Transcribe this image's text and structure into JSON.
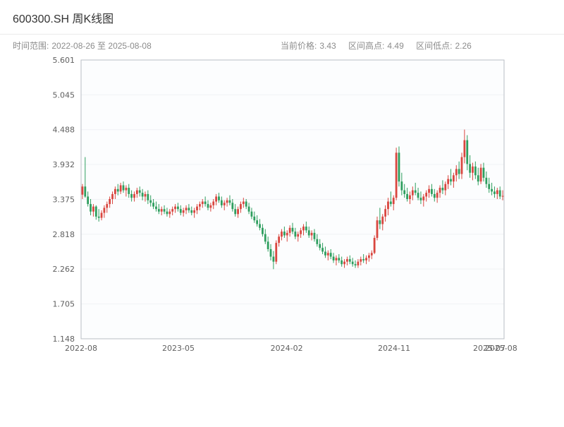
{
  "header": {
    "title": "600300.SH 周K线图",
    "time_range_label": "时间范围:",
    "time_range": "2022-08-26 至 2025-08-08",
    "stats": [
      {
        "label": "当前价格:",
        "value": "3.43"
      },
      {
        "label": "区间高点:",
        "value": "4.49"
      },
      {
        "label": "区间低点:",
        "value": "2.26"
      }
    ]
  },
  "chart_data": {
    "type": "candlestick",
    "title": "600300.SH 周K线图",
    "frequency": "weekly",
    "symbol": "600300.SH",
    "current_price": 3.43,
    "range_high": 4.49,
    "range_low": 2.26,
    "ylim": [
      1.148,
      5.601
    ],
    "y_ticks": [
      "1.148",
      "1.705",
      "2.262",
      "2.818",
      "3.375",
      "3.932",
      "4.488",
      "5.045",
      "5.601"
    ],
    "x_ticks": [
      {
        "label": "2022-08",
        "pos": 0.0
      },
      {
        "label": "2023-05",
        "pos": 0.23
      },
      {
        "label": "2024-02",
        "pos": 0.486
      },
      {
        "label": "2024-11",
        "pos": 0.74
      },
      {
        "label": "2025-07",
        "pos": 0.965
      },
      {
        "label": "2025-08",
        "pos": 0.993
      }
    ],
    "grid": true,
    "colors": {
      "up": "#d9463f",
      "down": "#2e9e5e",
      "grid": "#f0f2f5",
      "border": "#b9bec4",
      "tick_text": "#606060"
    },
    "ohlc_columns": [
      "open",
      "high",
      "low",
      "close"
    ],
    "ohlc": [
      [
        3.45,
        3.62,
        3.38,
        3.58
      ],
      [
        3.58,
        4.05,
        3.4,
        3.42
      ],
      [
        3.42,
        3.5,
        3.26,
        3.3
      ],
      [
        3.3,
        3.38,
        3.12,
        3.18
      ],
      [
        3.18,
        3.3,
        3.1,
        3.26
      ],
      [
        3.26,
        3.28,
        3.05,
        3.1
      ],
      [
        3.1,
        3.22,
        3.02,
        3.08
      ],
      [
        3.08,
        3.2,
        3.04,
        3.16
      ],
      [
        3.16,
        3.28,
        3.08,
        3.24
      ],
      [
        3.24,
        3.34,
        3.16,
        3.3
      ],
      [
        3.3,
        3.42,
        3.24,
        3.38
      ],
      [
        3.38,
        3.5,
        3.3,
        3.46
      ],
      [
        3.46,
        3.58,
        3.38,
        3.54
      ],
      [
        3.54,
        3.62,
        3.44,
        3.5
      ],
      [
        3.5,
        3.64,
        3.46,
        3.6
      ],
      [
        3.6,
        3.66,
        3.48,
        3.52
      ],
      [
        3.52,
        3.6,
        3.42,
        3.56
      ],
      [
        3.56,
        3.62,
        3.4,
        3.46
      ],
      [
        3.46,
        3.52,
        3.34,
        3.4
      ],
      [
        3.4,
        3.5,
        3.34,
        3.46
      ],
      [
        3.46,
        3.56,
        3.4,
        3.52
      ],
      [
        3.52,
        3.58,
        3.42,
        3.48
      ],
      [
        3.48,
        3.54,
        3.36,
        3.42
      ],
      [
        3.42,
        3.5,
        3.34,
        3.46
      ],
      [
        3.46,
        3.52,
        3.3,
        3.36
      ],
      [
        3.36,
        3.44,
        3.26,
        3.32
      ],
      [
        3.32,
        3.38,
        3.22,
        3.26
      ],
      [
        3.26,
        3.34,
        3.18,
        3.22
      ],
      [
        3.22,
        3.3,
        3.14,
        3.18
      ],
      [
        3.18,
        3.26,
        3.12,
        3.22
      ],
      [
        3.22,
        3.28,
        3.14,
        3.18
      ],
      [
        3.18,
        3.24,
        3.1,
        3.14
      ],
      [
        3.14,
        3.22,
        3.08,
        3.18
      ],
      [
        3.18,
        3.26,
        3.12,
        3.22
      ],
      [
        3.22,
        3.3,
        3.16,
        3.26
      ],
      [
        3.26,
        3.32,
        3.18,
        3.22
      ],
      [
        3.22,
        3.28,
        3.12,
        3.16
      ],
      [
        3.16,
        3.24,
        3.1,
        3.2
      ],
      [
        3.2,
        3.28,
        3.14,
        3.24
      ],
      [
        3.24,
        3.3,
        3.16,
        3.2
      ],
      [
        3.2,
        3.26,
        3.12,
        3.16
      ],
      [
        3.16,
        3.24,
        3.08,
        3.2
      ],
      [
        3.2,
        3.3,
        3.14,
        3.26
      ],
      [
        3.26,
        3.34,
        3.2,
        3.3
      ],
      [
        3.3,
        3.38,
        3.24,
        3.34
      ],
      [
        3.34,
        3.42,
        3.26,
        3.3
      ],
      [
        3.3,
        3.36,
        3.2,
        3.24
      ],
      [
        3.24,
        3.32,
        3.18,
        3.28
      ],
      [
        3.28,
        3.38,
        3.22,
        3.34
      ],
      [
        3.34,
        3.46,
        3.28,
        3.42
      ],
      [
        3.42,
        3.48,
        3.32,
        3.36
      ],
      [
        3.36,
        3.42,
        3.24,
        3.28
      ],
      [
        3.28,
        3.36,
        3.2,
        3.32
      ],
      [
        3.32,
        3.4,
        3.26,
        3.36
      ],
      [
        3.36,
        3.44,
        3.28,
        3.32
      ],
      [
        3.32,
        3.38,
        3.18,
        3.22
      ],
      [
        3.22,
        3.3,
        3.1,
        3.14
      ],
      [
        3.14,
        3.26,
        3.08,
        3.22
      ],
      [
        3.22,
        3.34,
        3.16,
        3.3
      ],
      [
        3.3,
        3.4,
        3.24,
        3.34
      ],
      [
        3.34,
        3.38,
        3.22,
        3.26
      ],
      [
        3.26,
        3.32,
        3.14,
        3.18
      ],
      [
        3.18,
        3.24,
        3.06,
        3.1
      ],
      [
        3.1,
        3.18,
        3.0,
        3.04
      ],
      [
        3.04,
        3.12,
        2.94,
        2.98
      ],
      [
        2.98,
        3.06,
        2.88,
        2.92
      ],
      [
        2.92,
        2.98,
        2.78,
        2.82
      ],
      [
        2.82,
        2.9,
        2.66,
        2.7
      ],
      [
        2.7,
        2.78,
        2.54,
        2.58
      ],
      [
        2.58,
        2.66,
        2.4,
        2.46
      ],
      [
        2.46,
        2.55,
        2.26,
        2.38
      ],
      [
        2.38,
        2.72,
        2.34,
        2.68
      ],
      [
        2.68,
        2.82,
        2.62,
        2.78
      ],
      [
        2.78,
        2.9,
        2.72,
        2.86
      ],
      [
        2.86,
        2.94,
        2.76,
        2.8
      ],
      [
        2.8,
        2.88,
        2.7,
        2.84
      ],
      [
        2.84,
        2.96,
        2.78,
        2.92
      ],
      [
        2.92,
        3.0,
        2.82,
        2.86
      ],
      [
        2.86,
        2.92,
        2.74,
        2.78
      ],
      [
        2.78,
        2.86,
        2.7,
        2.82
      ],
      [
        2.82,
        2.92,
        2.76,
        2.88
      ],
      [
        2.88,
        2.98,
        2.8,
        2.94
      ],
      [
        2.94,
        3.02,
        2.84,
        2.88
      ],
      [
        2.88,
        2.94,
        2.76,
        2.8
      ],
      [
        2.8,
        2.88,
        2.72,
        2.84
      ],
      [
        2.84,
        2.9,
        2.7,
        2.74
      ],
      [
        2.74,
        2.82,
        2.62,
        2.66
      ],
      [
        2.66,
        2.74,
        2.56,
        2.6
      ],
      [
        2.6,
        2.68,
        2.5,
        2.54
      ],
      [
        2.54,
        2.62,
        2.44,
        2.48
      ],
      [
        2.48,
        2.56,
        2.4,
        2.52
      ],
      [
        2.52,
        2.58,
        2.42,
        2.46
      ],
      [
        2.46,
        2.52,
        2.36,
        2.4
      ],
      [
        2.4,
        2.48,
        2.32,
        2.44
      ],
      [
        2.44,
        2.5,
        2.36,
        2.4
      ],
      [
        2.4,
        2.46,
        2.3,
        2.34
      ],
      [
        2.34,
        2.42,
        2.28,
        2.38
      ],
      [
        2.38,
        2.46,
        2.32,
        2.42
      ],
      [
        2.42,
        2.48,
        2.34,
        2.38
      ],
      [
        2.38,
        2.44,
        2.3,
        2.34
      ],
      [
        2.34,
        2.4,
        2.28,
        2.32
      ],
      [
        2.32,
        2.42,
        2.28,
        2.38
      ],
      [
        2.38,
        2.46,
        2.32,
        2.42
      ],
      [
        2.42,
        2.5,
        2.36,
        2.4
      ],
      [
        2.4,
        2.48,
        2.34,
        2.44
      ],
      [
        2.44,
        2.52,
        2.38,
        2.48
      ],
      [
        2.48,
        2.56,
        2.42,
        2.52
      ],
      [
        2.52,
        2.8,
        2.5,
        2.76
      ],
      [
        2.76,
        3.1,
        2.72,
        3.04
      ],
      [
        3.04,
        3.24,
        2.9,
        2.98
      ],
      [
        2.98,
        3.14,
        2.88,
        3.1
      ],
      [
        3.1,
        3.28,
        3.02,
        3.22
      ],
      [
        3.22,
        3.4,
        3.12,
        3.34
      ],
      [
        3.34,
        3.5,
        3.26,
        3.3
      ],
      [
        3.3,
        3.44,
        3.2,
        3.4
      ],
      [
        3.4,
        4.2,
        3.36,
        4.12
      ],
      [
        4.12,
        4.22,
        3.58,
        3.66
      ],
      [
        3.66,
        3.8,
        3.44,
        3.52
      ],
      [
        3.52,
        3.62,
        3.4,
        3.46
      ],
      [
        3.46,
        3.56,
        3.34,
        3.38
      ],
      [
        3.38,
        3.5,
        3.3,
        3.44
      ],
      [
        3.44,
        3.58,
        3.36,
        3.52
      ],
      [
        3.52,
        3.64,
        3.44,
        3.48
      ],
      [
        3.48,
        3.56,
        3.36,
        3.4
      ],
      [
        3.4,
        3.5,
        3.3,
        3.36
      ],
      [
        3.36,
        3.46,
        3.26,
        3.42
      ],
      [
        3.42,
        3.52,
        3.34,
        3.48
      ],
      [
        3.48,
        3.6,
        3.4,
        3.54
      ],
      [
        3.54,
        3.62,
        3.42,
        3.46
      ],
      [
        3.46,
        3.54,
        3.34,
        3.4
      ],
      [
        3.4,
        3.52,
        3.32,
        3.48
      ],
      [
        3.48,
        3.6,
        3.4,
        3.56
      ],
      [
        3.56,
        3.68,
        3.46,
        3.52
      ],
      [
        3.52,
        3.66,
        3.44,
        3.62
      ],
      [
        3.62,
        3.76,
        3.54,
        3.7
      ],
      [
        3.7,
        3.86,
        3.6,
        3.66
      ],
      [
        3.66,
        3.8,
        3.56,
        3.76
      ],
      [
        3.76,
        3.92,
        3.66,
        3.86
      ],
      [
        3.86,
        3.98,
        3.7,
        3.78
      ],
      [
        3.78,
        4.12,
        3.7,
        4.05
      ],
      [
        4.05,
        4.49,
        3.95,
        4.32
      ],
      [
        4.32,
        4.4,
        3.84,
        3.94
      ],
      [
        3.94,
        4.08,
        3.72,
        3.8
      ],
      [
        3.8,
        3.96,
        3.68,
        3.9
      ],
      [
        3.9,
        3.98,
        3.7,
        3.76
      ],
      [
        3.76,
        3.88,
        3.6,
        3.66
      ],
      [
        3.66,
        3.94,
        3.62,
        3.88
      ],
      [
        3.88,
        3.96,
        3.66,
        3.72
      ],
      [
        3.72,
        3.82,
        3.56,
        3.62
      ],
      [
        3.62,
        3.72,
        3.48,
        3.54
      ],
      [
        3.54,
        3.64,
        3.44,
        3.5
      ],
      [
        3.5,
        3.58,
        3.4,
        3.46
      ],
      [
        3.46,
        3.56,
        3.38,
        3.52
      ],
      [
        3.52,
        3.58,
        3.38,
        3.42
      ],
      [
        3.42,
        3.52,
        3.36,
        3.43
      ]
    ]
  }
}
